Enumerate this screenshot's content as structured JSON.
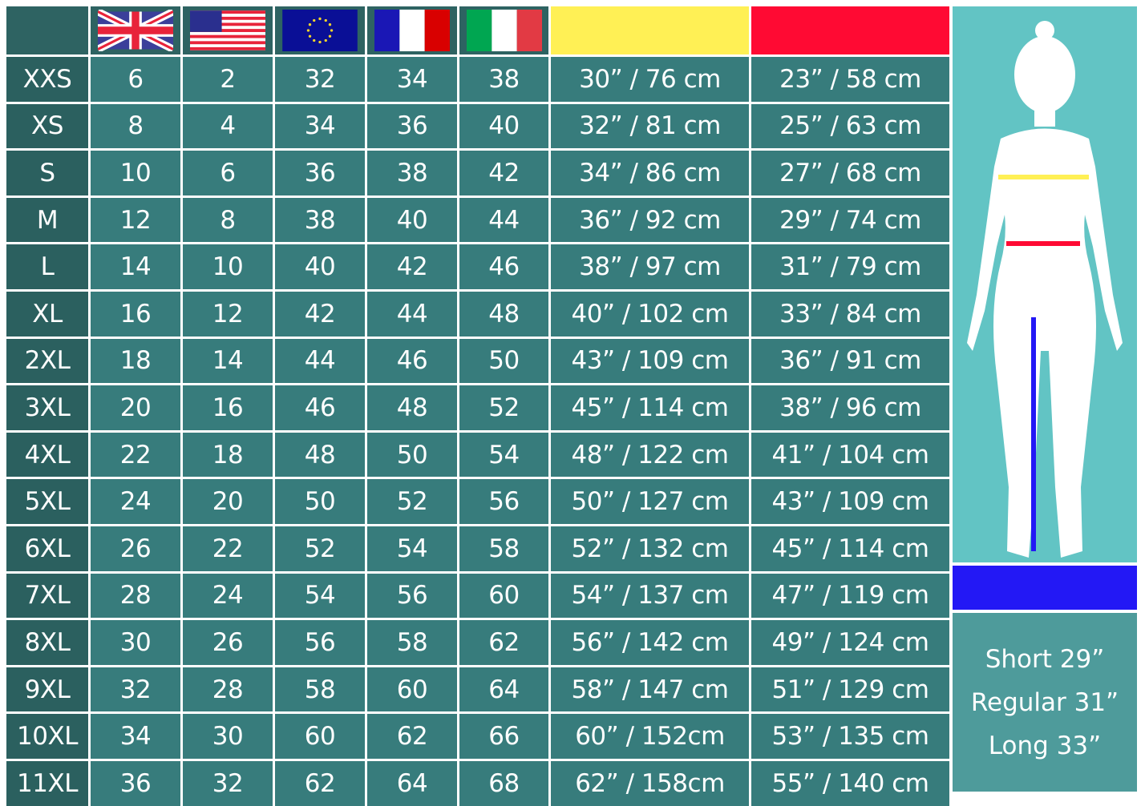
{
  "header": {
    "flags": [
      {
        "icon": "uk-flag-icon"
      },
      {
        "icon": "us-flag-icon"
      },
      {
        "icon": "eu-flag-icon"
      },
      {
        "icon": "france-flag-icon"
      },
      {
        "icon": "italy-flag-icon"
      }
    ],
    "measure_colors": {
      "chest": "#fff055",
      "waist": "#ff0a33",
      "inseam": "#2318f5"
    }
  },
  "rows": [
    [
      "XXS",
      "6",
      "2",
      "32",
      "34",
      "38",
      "30” / 76 cm",
      "23” / 58 cm"
    ],
    [
      "XS",
      "8",
      "4",
      "34",
      "36",
      "40",
      "32” / 81 cm",
      "25” / 63 cm"
    ],
    [
      "S",
      "10",
      "6",
      "36",
      "38",
      "42",
      "34” / 86 cm",
      "27” / 68 cm"
    ],
    [
      "M",
      "12",
      "8",
      "38",
      "40",
      "44",
      "36” / 92 cm",
      "29” / 74 cm"
    ],
    [
      "L",
      "14",
      "10",
      "40",
      "42",
      "46",
      "38” / 97 cm",
      "31” / 79 cm"
    ],
    [
      "XL",
      "16",
      "12",
      "42",
      "44",
      "48",
      "40” / 102 cm",
      "33” / 84 cm"
    ],
    [
      "2XL",
      "18",
      "14",
      "44",
      "46",
      "50",
      "43” / 109 cm",
      "36” / 91 cm"
    ],
    [
      "3XL",
      "20",
      "16",
      "46",
      "48",
      "52",
      "45” / 114 cm",
      "38” / 96 cm"
    ],
    [
      "4XL",
      "22",
      "18",
      "48",
      "50",
      "54",
      "48” / 122 cm",
      "41” / 104 cm"
    ],
    [
      "5XL",
      "24",
      "20",
      "50",
      "52",
      "56",
      "50” / 127 cm",
      "43” / 109 cm"
    ],
    [
      "6XL",
      "26",
      "22",
      "52",
      "54",
      "58",
      "52” / 132 cm",
      "45” / 114 cm"
    ],
    [
      "7XL",
      "28",
      "24",
      "54",
      "56",
      "60",
      "54” / 137 cm",
      "47” / 119 cm"
    ],
    [
      "8XL",
      "30",
      "26",
      "56",
      "58",
      "62",
      "56” / 142 cm",
      "49” / 124 cm"
    ],
    [
      "9XL",
      "32",
      "28",
      "58",
      "60",
      "64",
      "58” / 147 cm",
      "51” / 129 cm"
    ],
    [
      "10XL",
      "34",
      "30",
      "60",
      "62",
      "66",
      "60” / 152cm",
      "53” / 135 cm"
    ],
    [
      "11XL",
      "36",
      "32",
      "62",
      "64",
      "68",
      "62” / 158cm",
      "55” / 140 cm"
    ]
  ],
  "lengths": [
    "Short 29”",
    "Regular 31”",
    "Long 33”"
  ]
}
